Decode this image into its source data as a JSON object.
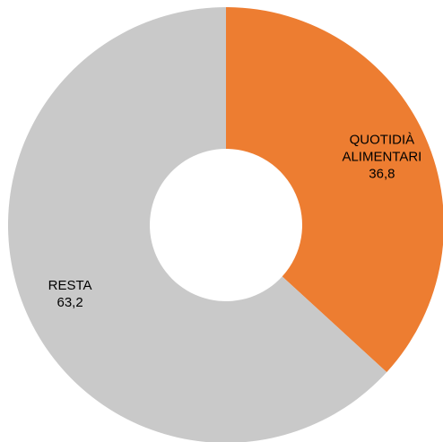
{
  "chart_data": {
    "type": "pie",
    "variant": "donut",
    "start": "12 o'clock, clockwise",
    "series": [
      {
        "name": "",
        "slices": [
          {
            "label_lines": [
              "QUOTIDIÀ",
              "ALIMENTARI"
            ],
            "value": 36.8,
            "value_text": "36,8",
            "color": "#ED7D31"
          },
          {
            "label_lines": [
              "RESTA"
            ],
            "value": 63.2,
            "value_text": "63,2",
            "color": "#C9C9C9"
          }
        ]
      }
    ],
    "legend": "none",
    "data_labels": "inside slices"
  }
}
